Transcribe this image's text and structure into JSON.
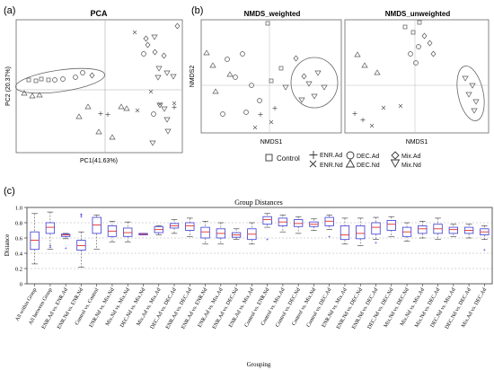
{
  "panels": {
    "a": {
      "letter": "(a)",
      "title": "PCA",
      "xlabel": "PC1(41.63%)",
      "ylabel": "PC2 (20.37%)"
    },
    "b": {
      "letter": "(b)",
      "title_left": "NMDS_weighted",
      "title_right": "NMDS_unweighted",
      "xlabel_left": "NMDS1",
      "xlabel_right": "NMDS1",
      "ylabel": "NMDS2"
    },
    "c": {
      "letter": "(c)"
    }
  },
  "legend": [
    {
      "label": "Control",
      "marker": "square"
    },
    {
      "label": "ENR.Ad",
      "marker": "plus"
    },
    {
      "label": "ENR.Nd",
      "marker": "cross"
    },
    {
      "label": "DEC.Ad",
      "marker": "circle"
    },
    {
      "label": "DEC.Nd",
      "marker": "triangle-up"
    },
    {
      "label": "Mix.Ad",
      "marker": "diamond"
    },
    {
      "label": "Mix.Nd",
      "marker": "triangle-down"
    }
  ],
  "colors": {
    "box": "#3a3ad8",
    "median": "#e03030",
    "outlier": "#3a3ad8",
    "whisker": "#555555"
  },
  "chart_data": {
    "type": "box",
    "title": "Group Distances",
    "xlabel": "Grouping",
    "ylabel": "Distance",
    "ylim": [
      0,
      1.0
    ],
    "yticks": [
      0,
      0.2,
      0.4,
      0.6,
      0.8,
      1.0
    ],
    "categories": [
      "All within Group",
      "All between Group",
      "ENR.Ad vs. ENR.Ad",
      "ENR.Nd vs. ENR.Nd",
      "Control vs. Control",
      "ENR.Nd vs. Mix.Nd",
      "Mix.Nd vs. Mix.Nd",
      "DEC.Nd vs. Mix.Nd",
      "Mix.Ad vs. Mix.Ad",
      "DEC.Ad vs. DEC.Ad",
      "ENR.Ad vs. DEC.Ad",
      "ENR.Ad vs. ENR.Nd",
      "ENR.Ad vs. Mix.Ad",
      "ENR.Ad vs. DEC.Nd",
      "ENR.Ad vs. Mix.Ad",
      "Control vs. ENR.Nd",
      "Control vs. Mix.Ad",
      "Control vs. DEC.Nd",
      "Control vs. Mix.Nd",
      "Control vs. DEC.Ad",
      "ENR.Nd vs. Mix.Ad",
      "ENR.Nd vs. DEC.Nd",
      "ENR.Nd vs. DEC.Ad",
      "DEC.Nd vs. DEC.Nd",
      "Mix.Nd vs. DEC.Nd",
      "Mix.Nd vs. Mix.Ad",
      "Mix.Nd vs. DEC.Ad",
      "DEC.Nd vs. Mix.Ad",
      "DEC.Nd vs. DEC.Ad",
      "Mix.Ad vs. DEC.Ad"
    ],
    "boxes": [
      {
        "min": 0.26,
        "q1": 0.45,
        "median": 0.57,
        "q3": 0.68,
        "max": 0.92,
        "outliers": []
      },
      {
        "min": 0.45,
        "q1": 0.66,
        "median": 0.74,
        "q3": 0.8,
        "max": 0.94,
        "outliers": [
          0.48,
          0.5
        ]
      },
      {
        "min": 0.59,
        "q1": 0.62,
        "median": 0.64,
        "q3": 0.65,
        "max": 0.66,
        "outliers": [
          0.47
        ]
      },
      {
        "min": 0.22,
        "q1": 0.44,
        "median": 0.5,
        "q3": 0.57,
        "max": 0.68,
        "outliers": [
          0.88,
          0.9,
          0.91
        ]
      },
      {
        "min": 0.45,
        "q1": 0.66,
        "median": 0.77,
        "q3": 0.87,
        "max": 0.9,
        "outliers": []
      },
      {
        "min": 0.55,
        "q1": 0.62,
        "median": 0.69,
        "q3": 0.76,
        "max": 0.82,
        "outliers": []
      },
      {
        "min": 0.55,
        "q1": 0.62,
        "median": 0.67,
        "q3": 0.73,
        "max": 0.81,
        "outliers": []
      },
      {
        "min": 0.64,
        "q1": 0.64,
        "median": 0.65,
        "q3": 0.66,
        "max": 0.66,
        "outliers": []
      },
      {
        "min": 0.64,
        "q1": 0.67,
        "median": 0.71,
        "q3": 0.75,
        "max": 0.76,
        "outliers": []
      },
      {
        "min": 0.66,
        "q1": 0.73,
        "median": 0.76,
        "q3": 0.79,
        "max": 0.84,
        "outliers": []
      },
      {
        "min": 0.62,
        "q1": 0.7,
        "median": 0.76,
        "q3": 0.8,
        "max": 0.86,
        "outliers": []
      },
      {
        "min": 0.52,
        "q1": 0.6,
        "median": 0.68,
        "q3": 0.74,
        "max": 0.82,
        "outliers": []
      },
      {
        "min": 0.52,
        "q1": 0.6,
        "median": 0.66,
        "q3": 0.72,
        "max": 0.8,
        "outliers": []
      },
      {
        "min": 0.58,
        "q1": 0.61,
        "median": 0.64,
        "q3": 0.67,
        "max": 0.72,
        "outliers": []
      },
      {
        "min": 0.52,
        "q1": 0.58,
        "median": 0.65,
        "q3": 0.72,
        "max": 0.8,
        "outliers": []
      },
      {
        "min": 0.74,
        "q1": 0.78,
        "median": 0.84,
        "q3": 0.88,
        "max": 0.92,
        "outliers": [
          0.58
        ]
      },
      {
        "min": 0.68,
        "q1": 0.76,
        "median": 0.81,
        "q3": 0.86,
        "max": 0.9,
        "outliers": []
      },
      {
        "min": 0.66,
        "q1": 0.75,
        "median": 0.79,
        "q3": 0.84,
        "max": 0.88,
        "outliers": []
      },
      {
        "min": 0.7,
        "q1": 0.75,
        "median": 0.78,
        "q3": 0.81,
        "max": 0.85,
        "outliers": []
      },
      {
        "min": 0.71,
        "q1": 0.76,
        "median": 0.82,
        "q3": 0.87,
        "max": 0.9,
        "outliers": [
          0.62
        ]
      },
      {
        "min": 0.52,
        "q1": 0.58,
        "median": 0.64,
        "q3": 0.76,
        "max": 0.86,
        "outliers": []
      },
      {
        "min": 0.5,
        "q1": 0.59,
        "median": 0.66,
        "q3": 0.76,
        "max": 0.86,
        "outliers": []
      },
      {
        "min": 0.58,
        "q1": 0.65,
        "median": 0.74,
        "q3": 0.8,
        "max": 0.87,
        "outliers": [
          0.54
        ]
      },
      {
        "min": 0.62,
        "q1": 0.7,
        "median": 0.78,
        "q3": 0.83,
        "max": 0.88,
        "outliers": []
      },
      {
        "min": 0.56,
        "q1": 0.62,
        "median": 0.68,
        "q3": 0.74,
        "max": 0.8,
        "outliers": []
      },
      {
        "min": 0.6,
        "q1": 0.66,
        "median": 0.72,
        "q3": 0.76,
        "max": 0.82,
        "outliers": []
      },
      {
        "min": 0.58,
        "q1": 0.66,
        "median": 0.72,
        "q3": 0.78,
        "max": 0.86,
        "outliers": []
      },
      {
        "min": 0.62,
        "q1": 0.66,
        "median": 0.71,
        "q3": 0.74,
        "max": 0.78,
        "outliers": []
      },
      {
        "min": 0.6,
        "q1": 0.66,
        "median": 0.7,
        "q3": 0.74,
        "max": 0.78,
        "outliers": []
      },
      {
        "min": 0.58,
        "q1": 0.64,
        "median": 0.68,
        "q3": 0.72,
        "max": 0.76,
        "outliers": [
          0.45
        ]
      }
    ]
  }
}
